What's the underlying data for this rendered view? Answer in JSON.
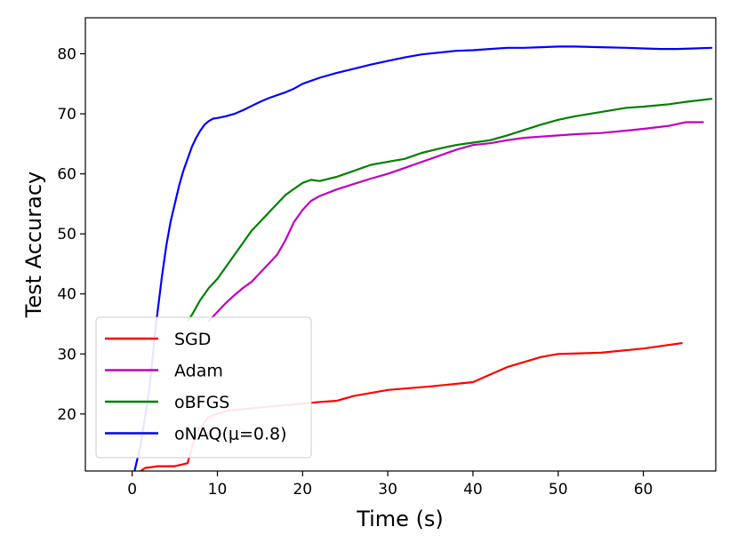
{
  "chart_data": {
    "type": "line",
    "title": "",
    "xlabel": "Time (s)",
    "ylabel": "Test Accuracy",
    "xlim": [
      -5.5,
      68.5
    ],
    "ylim": [
      10.5,
      86
    ],
    "xticks": [
      "0",
      "10",
      "20",
      "30",
      "40",
      "50",
      "60"
    ],
    "yticks": [
      "20",
      "30",
      "40",
      "50",
      "60",
      "70",
      "80"
    ],
    "legend_position": "lower-left",
    "grid": false,
    "series": [
      {
        "name": "SGD",
        "color": "#ff0000",
        "x": [
          0.5,
          1.5,
          3,
          5,
          6.5,
          7.5,
          9,
          11,
          13,
          16,
          19,
          22,
          24,
          26,
          30,
          35,
          40,
          44,
          48,
          50,
          55,
          60,
          64.5
        ],
        "y": [
          10,
          11,
          11.3,
          11.3,
          11.8,
          17,
          19.5,
          20.5,
          20.8,
          21.2,
          21.6,
          22,
          22.2,
          23,
          24,
          24.6,
          25.3,
          27.8,
          29.5,
          30,
          30.2,
          30.9,
          31.8
        ]
      },
      {
        "name": "Adam",
        "color": "#c000c0",
        "x": [
          9,
          10,
          11,
          12,
          13,
          14,
          15,
          16,
          17,
          18,
          19,
          20,
          21,
          22,
          24,
          26,
          28,
          30,
          32,
          34,
          36,
          38,
          40,
          42,
          44,
          46,
          48,
          50,
          52,
          55,
          58,
          60,
          63,
          65,
          67
        ],
        "y": [
          35.5,
          37,
          38.5,
          39.8,
          41,
          42,
          43.5,
          45,
          46.5,
          49,
          52,
          54,
          55.5,
          56.3,
          57.4,
          58.3,
          59.2,
          60,
          61,
          62,
          63,
          64,
          64.8,
          65.1,
          65.6,
          66,
          66.2,
          66.4,
          66.6,
          66.8,
          67.2,
          67.5,
          68,
          68.6,
          68.6
        ]
      },
      {
        "name": "oBFGS",
        "color": "#008000",
        "x": [
          6.5,
          7,
          8,
          9,
          10,
          11,
          12,
          13,
          14,
          15,
          16,
          17,
          18,
          19,
          20,
          21,
          22,
          24,
          26,
          28,
          30,
          32,
          34,
          36,
          38,
          40,
          42,
          44,
          46,
          48,
          50,
          52,
          55,
          58,
          60,
          63,
          65,
          68
        ],
        "y": [
          35.5,
          36.5,
          39,
          41,
          42.5,
          44.5,
          46.5,
          48.5,
          50.5,
          52,
          53.5,
          55,
          56.5,
          57.5,
          58.5,
          59,
          58.8,
          59.5,
          60.5,
          61.5,
          62,
          62.5,
          63.5,
          64.2,
          64.8,
          65.2,
          65.6,
          66.4,
          67.3,
          68.2,
          69,
          69.6,
          70.3,
          71,
          71.2,
          71.6,
          72,
          72.5
        ]
      },
      {
        "name": "oNAQ(μ=0.8)",
        "color": "#0000ff",
        "x": [
          0.2,
          1,
          2,
          2.8,
          3.5,
          4,
          4.5,
          5,
          5.5,
          6,
          6.5,
          7,
          7.5,
          8,
          8.5,
          9,
          9.5,
          10,
          11,
          12,
          13,
          14,
          15,
          16,
          17,
          18,
          19,
          20,
          22,
          24,
          26,
          28,
          30,
          32,
          34,
          36,
          38,
          40,
          42,
          44,
          46,
          48,
          50,
          52,
          55,
          58,
          60,
          62,
          64,
          66,
          68
        ],
        "y": [
          10,
          15,
          24,
          35,
          43,
          48,
          52,
          55,
          58,
          60.5,
          62.5,
          64.5,
          66,
          67.2,
          68.2,
          68.8,
          69.2,
          69.3,
          69.6,
          70,
          70.6,
          71.3,
          72,
          72.6,
          73.1,
          73.6,
          74.2,
          75,
          76,
          76.8,
          77.5,
          78.2,
          78.8,
          79.4,
          79.9,
          80.2,
          80.5,
          80.6,
          80.8,
          81,
          81,
          81.1,
          81.2,
          81.2,
          81.1,
          81,
          80.9,
          80.8,
          80.8,
          80.9,
          81
        ]
      }
    ]
  }
}
